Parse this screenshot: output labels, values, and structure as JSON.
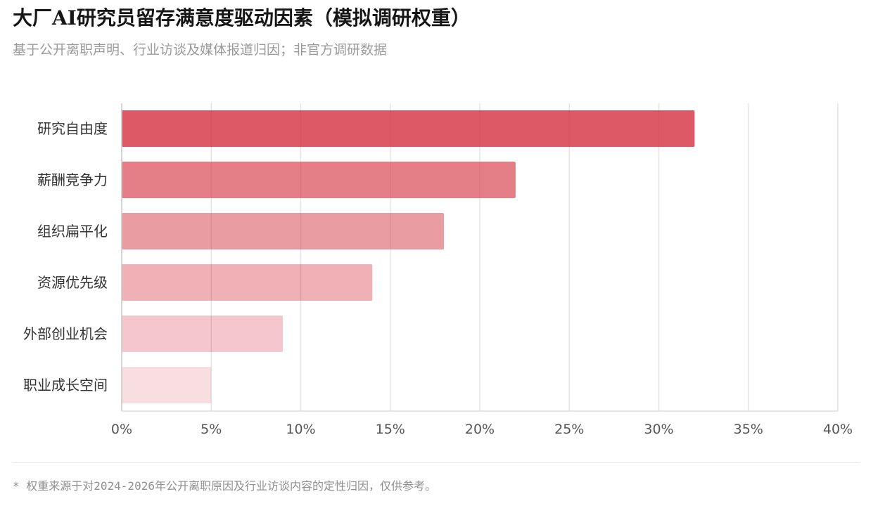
{
  "header": {
    "title": "大厂AI研究员留存满意度驱动因素（模拟调研权重）",
    "subtitle": "基于公开离职声明、行业访谈及媒体报道归因；非官方调研数据"
  },
  "footer": {
    "note": "* 权重来源于对2024-2026年公开离职原因及行业访谈内容的定性归因，仅供参考。"
  },
  "colors": {
    "bar": "#d4303f",
    "grid": "#e4e4e4",
    "tick_text": "#555555",
    "label_text": "#333333"
  },
  "chart_data": {
    "type": "bar",
    "orientation": "horizontal",
    "categories": [
      "研究自由度",
      "薪酬竞争力",
      "组织扁平化",
      "资源优先级",
      "外部创业机会",
      "职业成长空间"
    ],
    "values": [
      32,
      22,
      18,
      14,
      9,
      5
    ],
    "opacities": [
      0.8,
      0.62,
      0.48,
      0.38,
      0.27,
      0.16
    ],
    "xlim": [
      0,
      40
    ],
    "xticks": [
      0,
      5,
      10,
      15,
      20,
      25,
      30,
      35,
      40
    ],
    "xtick_labels": [
      "0%",
      "5%",
      "10%",
      "15%",
      "20%",
      "25%",
      "30%",
      "35%",
      "40%"
    ],
    "grid": true,
    "title": "",
    "xlabel": "",
    "ylabel": ""
  }
}
